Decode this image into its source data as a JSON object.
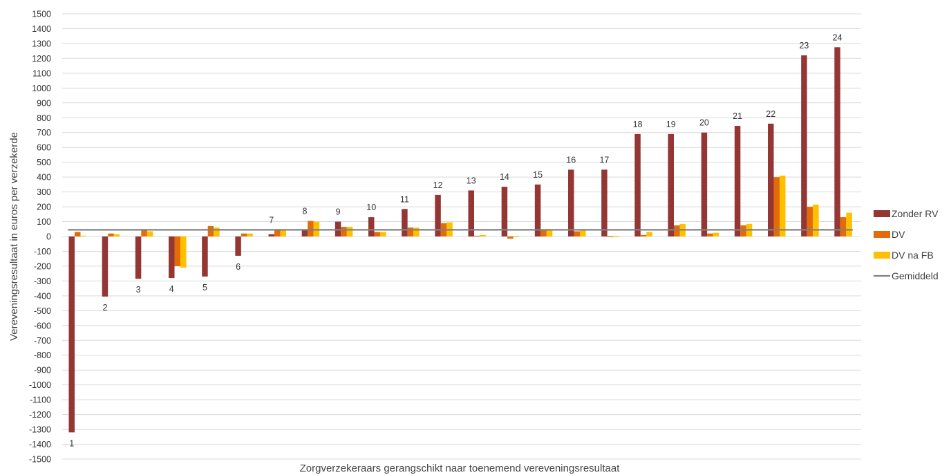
{
  "chart_data": {
    "type": "bar",
    "xlabel": "Zorgverzekeraars gerangschikt naar toenemend vereveningsresultaat",
    "ylabel": "Vereveningsresultaat in euros per verzekerde",
    "ylim": [
      -1500,
      1500
    ],
    "ytick_step": 100,
    "grid": true,
    "legend_position": "right",
    "categories": [
      "1",
      "2",
      "3",
      "4",
      "5",
      "6",
      "7",
      "8",
      "9",
      "10",
      "11",
      "12",
      "13",
      "14",
      "15",
      "16",
      "17",
      "18",
      "19",
      "20",
      "21",
      "22",
      "23",
      "24"
    ],
    "series": [
      {
        "name": "Zonder RV",
        "color": "#943634",
        "values": [
          -1320,
          -405,
          -285,
          -280,
          -270,
          -130,
          15,
          45,
          100,
          130,
          185,
          280,
          310,
          335,
          350,
          450,
          450,
          690,
          690,
          700,
          745,
          760,
          1220,
          1275
        ]
      },
      {
        "name": "DV",
        "color": "#E36C09",
        "values": [
          30,
          20,
          45,
          -200,
          70,
          20,
          45,
          105,
          65,
          30,
          60,
          90,
          5,
          -15,
          45,
          35,
          -5,
          10,
          75,
          20,
          75,
          400,
          200,
          130
        ]
      },
      {
        "name": "DV na FB",
        "color": "#FFC000",
        "values": [
          5,
          15,
          35,
          -210,
          60,
          20,
          45,
          100,
          65,
          30,
          60,
          95,
          10,
          -5,
          45,
          45,
          -5,
          30,
          85,
          25,
          85,
          410,
          215,
          160
        ]
      }
    ],
    "line_series": {
      "name": "Gemiddeld",
      "color": "#808080",
      "value": 45
    }
  }
}
